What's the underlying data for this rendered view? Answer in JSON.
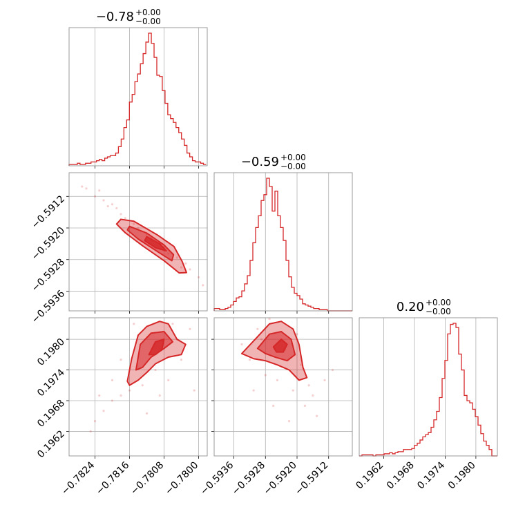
{
  "chart_data": {
    "type": "corner",
    "color": "#d62728",
    "grid": true,
    "parameters": [
      {
        "title_value": "−0.78",
        "title_plus": "+0.00",
        "title_minus": "−0.00",
        "range": [
          -0.783,
          -0.7798
        ],
        "ticks": [
          -0.7824,
          -0.7816,
          -0.7808,
          -0.78
        ],
        "tick_labels": [
          "−0.7824",
          "−0.7816",
          "−0.7808",
          "−0.7800"
        ],
        "hist": {
          "edges_start": -0.783,
          "bin_width": 6.35e-05,
          "values": [
            1,
            1,
            1,
            2,
            1,
            1,
            2,
            2,
            3,
            3,
            4,
            5,
            4,
            6,
            7,
            8,
            8,
            10,
            15,
            21,
            30,
            36,
            50,
            56,
            66,
            72,
            80,
            88,
            97,
            104,
            96,
            85,
            71,
            70,
            59,
            49,
            40,
            37,
            34,
            30,
            26,
            21,
            16,
            10,
            7,
            4,
            3,
            3,
            2,
            1
          ]
        }
      },
      {
        "title_value": "−0.59",
        "title_plus": "+0.00",
        "title_minus": "−0.00",
        "range": [
          -0.5941,
          -0.5906
        ],
        "ticks": [
          -0.5936,
          -0.5928,
          -0.592,
          -0.5912
        ],
        "tick_labels": [
          "−0.5936",
          "−0.5928",
          "−0.5920",
          "−0.5912"
        ],
        "hist": {
          "edges_start": -0.5941,
          "bin_width": 7e-05,
          "values": [
            2,
            2,
            1,
            1,
            2,
            3,
            5,
            8,
            11,
            12,
            17,
            23,
            30,
            43,
            58,
            71,
            81,
            94,
            99,
            113,
            106,
            85,
            102,
            81,
            71,
            60,
            43,
            29,
            20,
            15,
            13,
            10,
            6,
            5,
            4,
            3,
            2,
            2,
            1,
            1,
            1,
            0,
            0,
            0,
            0,
            0,
            0,
            0,
            0,
            0
          ]
        }
      },
      {
        "title_value": "0.20",
        "title_plus": "+0.00",
        "title_minus": "−0.00",
        "range": [
          0.19572,
          0.19842
        ],
        "ticks": [
          0.1962,
          0.1968,
          0.1974,
          0.198
        ],
        "tick_labels": [
          "0.1962",
          "0.1968",
          "0.1974",
          "0.1980"
        ],
        "hist": {
          "edges_start": 0.19572,
          "bin_width": 5.4e-05,
          "values": [
            0,
            1,
            1,
            1,
            1,
            0,
            1,
            1,
            1,
            2,
            2,
            3,
            2,
            3,
            4,
            4,
            6,
            6,
            6,
            7,
            10,
            12,
            15,
            18,
            20,
            22,
            27,
            34,
            42,
            55,
            73,
            90,
            115,
            124,
            125,
            121,
            96,
            81,
            57,
            52,
            50,
            44,
            37,
            29,
            21,
            14,
            10,
            6,
            0,
            0
          ]
        }
      }
    ],
    "pairs": [
      {
        "row": 1,
        "col": 0,
        "points": [
          [
            -0.7826,
            -0.591
          ],
          [
            -0.7824,
            -0.5912
          ],
          [
            -0.7822,
            -0.5913
          ],
          [
            -0.7821,
            -0.59145
          ],
          [
            -0.782,
            -0.5914
          ],
          [
            -0.7818,
            -0.59165
          ],
          [
            -0.7817,
            -0.59175
          ],
          [
            -0.7815,
            -0.5919
          ],
          [
            -0.7814,
            -0.592
          ],
          [
            -0.7812,
            -0.59215
          ],
          [
            -0.7811,
            -0.59225
          ],
          [
            -0.7809,
            -0.5924
          ],
          [
            -0.7808,
            -0.5925
          ],
          [
            -0.7806,
            -0.59265
          ],
          [
            -0.7805,
            -0.59275
          ],
          [
            -0.7803,
            -0.5929
          ],
          [
            -0.7802,
            -0.59305
          ],
          [
            -0.78,
            -0.59325
          ],
          [
            -0.7799,
            -0.59345
          ],
          [
            -0.7827,
            -0.59095
          ],
          [
            -0.7823,
            -0.59105
          ],
          [
            -0.7819,
            -0.5915
          ],
          [
            -0.7807,
            -0.59265
          ],
          [
            -0.7804,
            -0.593
          ]
        ],
        "contours": [
          [
            [
              -0.7818,
              -0.59178
            ],
            [
              -0.7815,
              -0.59183
            ],
            [
              -0.78095,
              -0.59218
            ],
            [
              -0.78057,
              -0.59247
            ],
            [
              -0.78038,
              -0.59285
            ],
            [
              -0.78028,
              -0.59313
            ],
            [
              -0.78045,
              -0.59314
            ],
            [
              -0.7808,
              -0.59283
            ],
            [
              -0.7813,
              -0.59245
            ],
            [
              -0.7817,
              -0.59212
            ],
            [
              -0.7819,
              -0.5919
            ]
          ],
          [
            [
              -0.7816,
              -0.59196
            ],
            [
              -0.7812,
              -0.59213
            ],
            [
              -0.7808,
              -0.59243
            ],
            [
              -0.78058,
              -0.59268
            ],
            [
              -0.78062,
              -0.59283
            ],
            [
              -0.78095,
              -0.5926
            ],
            [
              -0.7814,
              -0.59228
            ],
            [
              -0.78165,
              -0.59205
            ]
          ],
          [
            [
              -0.7812,
              -0.59222
            ],
            [
              -0.7809,
              -0.5924
            ],
            [
              -0.78075,
              -0.59258
            ],
            [
              -0.781,
              -0.5925
            ],
            [
              -0.78125,
              -0.59232
            ]
          ]
        ]
      },
      {
        "row": 2,
        "col": 0,
        "points": [
          [
            -0.7825,
            0.1962
          ],
          [
            -0.7824,
            0.1964
          ],
          [
            -0.7822,
            0.1966
          ],
          [
            -0.782,
            0.1968
          ],
          [
            -0.7818,
            0.1969
          ],
          [
            -0.7816,
            0.197
          ],
          [
            -0.7813,
            0.1971
          ],
          [
            -0.7812,
            0.19655
          ],
          [
            -0.781,
            0.1974
          ],
          [
            -0.7807,
            0.1972
          ],
          [
            -0.7805,
            0.198
          ],
          [
            -0.7804,
            0.1976
          ],
          [
            -0.7802,
            0.1982
          ],
          [
            -0.7801,
            0.197
          ],
          [
            -0.7815,
            0.1983
          ],
          [
            -0.7818,
            0.1976
          ],
          [
            -0.782,
            0.1972
          ],
          [
            -0.7823,
            0.1969
          ],
          [
            -0.7809,
            0.1969
          ],
          [
            -0.7806,
            0.1983
          ]
        ],
        "contours": [
          [
            [
              -0.78165,
              0.19718
            ],
            [
              -0.78155,
              0.19762
            ],
            [
              -0.7814,
              0.19808
            ],
            [
              -0.7812,
              0.19825
            ],
            [
              -0.7809,
              0.19835
            ],
            [
              -0.7807,
              0.1983
            ],
            [
              -0.7805,
              0.198
            ],
            [
              -0.7803,
              0.1979
            ],
            [
              -0.7804,
              0.1977
            ],
            [
              -0.7807,
              0.19765
            ],
            [
              -0.781,
              0.19752
            ],
            [
              -0.7812,
              0.19735
            ],
            [
              -0.7814,
              0.1972
            ],
            [
              -0.7816,
              0.1971
            ]
          ],
          [
            [
              -0.78145,
              0.1974
            ],
            [
              -0.78135,
              0.1979
            ],
            [
              -0.7811,
              0.19812
            ],
            [
              -0.7808,
              0.19815
            ],
            [
              -0.7806,
              0.19795
            ],
            [
              -0.7808,
              0.19782
            ],
            [
              -0.7811,
              0.19765
            ],
            [
              -0.7813,
              0.19745
            ]
          ],
          [
            [
              -0.78115,
              0.1977
            ],
            [
              -0.781,
              0.19795
            ],
            [
              -0.7808,
              0.198
            ],
            [
              -0.78085,
              0.1978
            ],
            [
              -0.781,
              0.1977
            ]
          ]
        ]
      },
      {
        "row": 2,
        "col": 1,
        "points": [
          [
            -0.5934,
            0.1979
          ],
          [
            -0.5932,
            0.1976
          ],
          [
            -0.593,
            0.1982
          ],
          [
            -0.5928,
            0.1973
          ],
          [
            -0.5927,
            0.1984
          ],
          [
            -0.5925,
            0.1972
          ],
          [
            -0.5923,
            0.1978
          ],
          [
            -0.5921,
            0.197
          ],
          [
            -0.5919,
            0.1975
          ],
          [
            -0.5918,
            0.1967
          ],
          [
            -0.5917,
            0.1971
          ],
          [
            -0.5916,
            0.1969
          ],
          [
            -0.5915,
            0.1965
          ],
          [
            -0.5913,
            0.1972
          ],
          [
            -0.5911,
            0.1974
          ],
          [
            -0.5926,
            0.1967
          ],
          [
            -0.5931,
            0.197
          ],
          [
            -0.5922,
            0.1964
          ],
          [
            -0.592,
            0.1981
          ],
          [
            -0.5929,
            0.198
          ]
        ],
        "contours": [
          [
            [
              -0.5934,
              0.19772
            ],
            [
              -0.593,
              0.19805
            ],
            [
              -0.5927,
              0.1983
            ],
            [
              -0.5924,
              0.19835
            ],
            [
              -0.5921,
              0.1982
            ],
            [
              -0.59195,
              0.1979
            ],
            [
              -0.59185,
              0.19745
            ],
            [
              -0.59175,
              0.19725
            ],
            [
              -0.59195,
              0.1972
            ],
            [
              -0.5922,
              0.1974
            ],
            [
              -0.5925,
              0.1975
            ],
            [
              -0.5928,
              0.19758
            ],
            [
              -0.5931,
              0.19762
            ]
          ],
          [
            [
              -0.593,
              0.19782
            ],
            [
              -0.5927,
              0.1981
            ],
            [
              -0.5924,
              0.19815
            ],
            [
              -0.59215,
              0.198
            ],
            [
              -0.59205,
              0.1977
            ],
            [
              -0.59225,
              0.19758
            ],
            [
              -0.59255,
              0.19765
            ],
            [
              -0.5928,
              0.19772
            ]
          ],
          [
            [
              -0.5926,
              0.19785
            ],
            [
              -0.5924,
              0.198
            ],
            [
              -0.59225,
              0.1979
            ],
            [
              -0.59235,
              0.19775
            ],
            [
              -0.59252,
              0.19775
            ]
          ]
        ]
      }
    ]
  }
}
